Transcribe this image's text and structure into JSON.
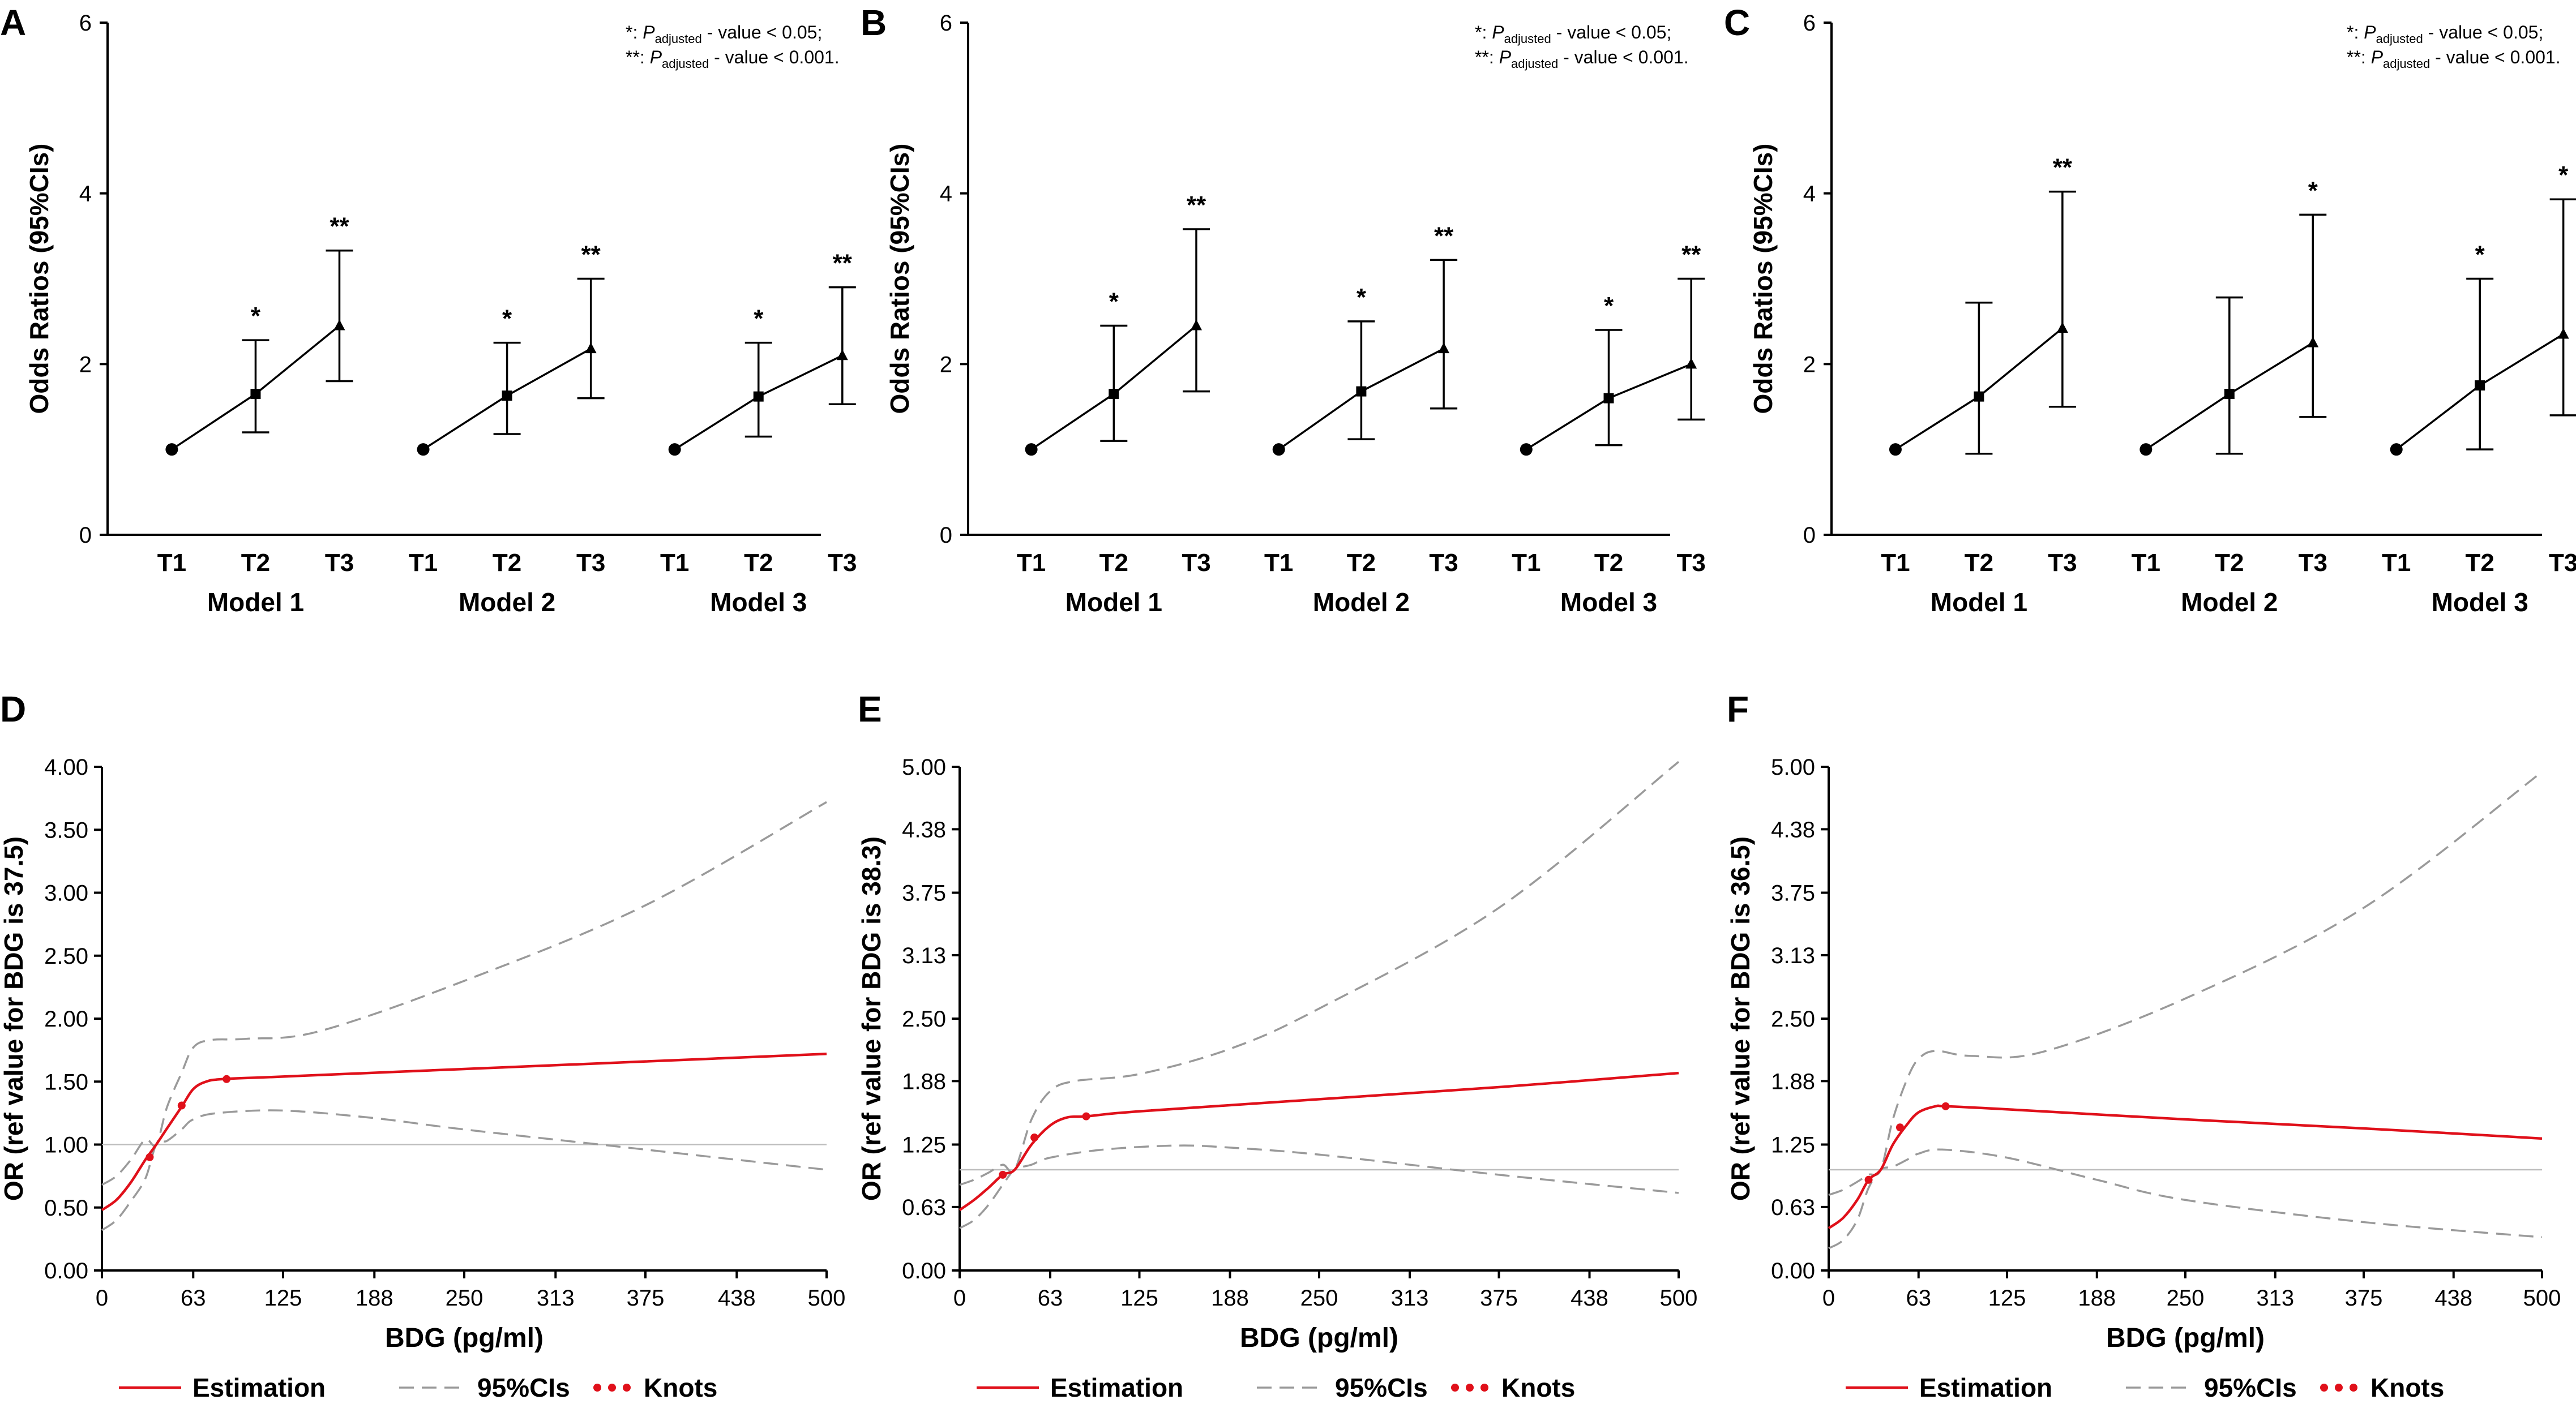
{
  "colors": {
    "estimation": "#e0101a",
    "ci": "#9a9a9a",
    "reference": "#bdbdbd",
    "axis": "#000000"
  },
  "panels_top": [
    {
      "label": "A",
      "ylabel": "Odds Ratios (95%CIs)",
      "ylim": [
        0,
        6
      ],
      "yticks": [
        "0",
        "2",
        "4",
        "6"
      ],
      "footnote1": "*:  P adjusted - value < 0.05;",
      "footnote2": "**: P adjusted - value < 0.001.",
      "models": [
        {
          "name": "Model 1",
          "points": [
            {
              "tertile": "T1",
              "or": 1.0,
              "lo": null,
              "hi": null,
              "sig": ""
            },
            {
              "tertile": "T2",
              "or": 1.65,
              "lo": 1.2,
              "hi": 2.28,
              "sig": "*"
            },
            {
              "tertile": "T3",
              "or": 2.45,
              "lo": 1.8,
              "hi": 3.33,
              "sig": "**"
            }
          ]
        },
        {
          "name": "Model 2",
          "points": [
            {
              "tertile": "T1",
              "or": 1.0,
              "lo": null,
              "hi": null,
              "sig": ""
            },
            {
              "tertile": "T2",
              "or": 1.63,
              "lo": 1.18,
              "hi": 2.25,
              "sig": "*"
            },
            {
              "tertile": "T3",
              "or": 2.18,
              "lo": 1.6,
              "hi": 3.0,
              "sig": "**"
            }
          ]
        },
        {
          "name": "Model 3",
          "points": [
            {
              "tertile": "T1",
              "or": 1.0,
              "lo": null,
              "hi": null,
              "sig": ""
            },
            {
              "tertile": "T2",
              "or": 1.62,
              "lo": 1.15,
              "hi": 2.25,
              "sig": "*"
            },
            {
              "tertile": "T3",
              "or": 2.1,
              "lo": 1.53,
              "hi": 2.9,
              "sig": "**"
            }
          ]
        }
      ]
    },
    {
      "label": "B",
      "ylabel": "Odds Ratios (95%CIs)",
      "ylim": [
        0,
        6
      ],
      "yticks": [
        "0",
        "2",
        "4",
        "6"
      ],
      "footnote1": "*:  P adjusted - value < 0.05;",
      "footnote2": "**: P adjusted - value < 0.001.",
      "models": [
        {
          "name": "Model 1",
          "points": [
            {
              "tertile": "T1",
              "or": 1.0,
              "lo": null,
              "hi": null,
              "sig": ""
            },
            {
              "tertile": "T2",
              "or": 1.65,
              "lo": 1.1,
              "hi": 2.45,
              "sig": "*"
            },
            {
              "tertile": "T3",
              "or": 2.45,
              "lo": 1.68,
              "hi": 3.58,
              "sig": "**"
            }
          ]
        },
        {
          "name": "Model 2",
          "points": [
            {
              "tertile": "T1",
              "or": 1.0,
              "lo": null,
              "hi": null,
              "sig": ""
            },
            {
              "tertile": "T2",
              "or": 1.68,
              "lo": 1.12,
              "hi": 2.5,
              "sig": "*"
            },
            {
              "tertile": "T3",
              "or": 2.18,
              "lo": 1.48,
              "hi": 3.22,
              "sig": "**"
            }
          ]
        },
        {
          "name": "Model 3",
          "points": [
            {
              "tertile": "T1",
              "or": 1.0,
              "lo": null,
              "hi": null,
              "sig": ""
            },
            {
              "tertile": "T2",
              "or": 1.6,
              "lo": 1.05,
              "hi": 2.4,
              "sig": "*"
            },
            {
              "tertile": "T3",
              "or": 2.0,
              "lo": 1.35,
              "hi": 3.0,
              "sig": "**"
            }
          ]
        }
      ]
    },
    {
      "label": "C",
      "ylabel": "Odds Ratios (95%CIs)",
      "ylim": [
        0,
        6
      ],
      "yticks": [
        "0",
        "2",
        "4",
        "6"
      ],
      "footnote1": "*:  P adjusted - value < 0.05;",
      "footnote2": "**: P adjusted - value < 0.001.",
      "models": [
        {
          "name": "Model 1",
          "points": [
            {
              "tertile": "T1",
              "or": 1.0,
              "lo": null,
              "hi": null,
              "sig": ""
            },
            {
              "tertile": "T2",
              "or": 1.62,
              "lo": 0.95,
              "hi": 2.72,
              "sig": ""
            },
            {
              "tertile": "T3",
              "or": 2.42,
              "lo": 1.5,
              "hi": 4.02,
              "sig": "**"
            }
          ]
        },
        {
          "name": "Model 2",
          "points": [
            {
              "tertile": "T1",
              "or": 1.0,
              "lo": null,
              "hi": null,
              "sig": ""
            },
            {
              "tertile": "T2",
              "or": 1.65,
              "lo": 0.95,
              "hi": 2.78,
              "sig": ""
            },
            {
              "tertile": "T3",
              "or": 2.25,
              "lo": 1.38,
              "hi": 3.75,
              "sig": "*"
            }
          ]
        },
        {
          "name": "Model 3",
          "points": [
            {
              "tertile": "T1",
              "or": 1.0,
              "lo": null,
              "hi": null,
              "sig": ""
            },
            {
              "tertile": "T2",
              "or": 1.75,
              "lo": 1.0,
              "hi": 3.0,
              "sig": "*"
            },
            {
              "tertile": "T3",
              "or": 2.35,
              "lo": 1.4,
              "hi": 3.93,
              "sig": "*"
            }
          ]
        }
      ]
    }
  ],
  "panels_bottom": [
    {
      "label": "D",
      "ylabel": "OR (ref value for BDG is 37.5)",
      "xlabel": "BDG (pg/ml)",
      "xticks": [
        "0",
        "63",
        "125",
        "188",
        "250",
        "313",
        "375",
        "438",
        "500"
      ],
      "yticks": [
        "0.00",
        "0.50",
        "1.00",
        "1.50",
        "2.00",
        "2.50",
        "3.00",
        "3.50",
        "4.00"
      ],
      "xlim": [
        0,
        500
      ],
      "ylim": [
        0,
        4
      ],
      "ref_or": 1.0,
      "estimation": [
        [
          0,
          0.48
        ],
        [
          10,
          0.56
        ],
        [
          20,
          0.7
        ],
        [
          30,
          0.88
        ],
        [
          37.5,
          1.0
        ],
        [
          45,
          1.13
        ],
        [
          55,
          1.3
        ],
        [
          63,
          1.44
        ],
        [
          72,
          1.5
        ],
        [
          84,
          1.52
        ],
        [
          125,
          1.54
        ],
        [
          250,
          1.6
        ],
        [
          375,
          1.66
        ],
        [
          500,
          1.72
        ]
      ],
      "ci_upper": [
        [
          0,
          0.68
        ],
        [
          10,
          0.75
        ],
        [
          20,
          0.88
        ],
        [
          30,
          1.04
        ],
        [
          37.5,
          1.0
        ],
        [
          45,
          1.3
        ],
        [
          55,
          1.57
        ],
        [
          63,
          1.77
        ],
        [
          75,
          1.83
        ],
        [
          100,
          1.84
        ],
        [
          150,
          1.9
        ],
        [
          250,
          2.3
        ],
        [
          375,
          2.9
        ],
        [
          500,
          3.72
        ]
      ],
      "ci_lower": [
        [
          0,
          0.32
        ],
        [
          10,
          0.4
        ],
        [
          20,
          0.55
        ],
        [
          30,
          0.73
        ],
        [
          37.5,
          1.0
        ],
        [
          45,
          1.03
        ],
        [
          55,
          1.12
        ],
        [
          63,
          1.2
        ],
        [
          80,
          1.25
        ],
        [
          125,
          1.27
        ],
        [
          188,
          1.21
        ],
        [
          250,
          1.12
        ],
        [
          375,
          0.96
        ],
        [
          500,
          0.8
        ]
      ],
      "knots": [
        [
          33,
          0.9
        ],
        [
          55,
          1.31
        ],
        [
          86,
          1.52
        ]
      ]
    },
    {
      "label": "E",
      "ylabel": "OR (ref value for BDG is 38.3)",
      "xlabel": "BDG (pg/ml)",
      "xticks": [
        "0",
        "63",
        "125",
        "188",
        "250",
        "313",
        "375",
        "438",
        "500"
      ],
      "yticks": [
        "0.00",
        "0.63",
        "1.25",
        "1.88",
        "2.50",
        "3.13",
        "3.75",
        "4.38",
        "5.00"
      ],
      "xlim": [
        0,
        500
      ],
      "ylim": [
        0,
        5
      ],
      "ref_or": 1.0,
      "estimation": [
        [
          0,
          0.6
        ],
        [
          10,
          0.7
        ],
        [
          20,
          0.82
        ],
        [
          30,
          0.95
        ],
        [
          38.3,
          1.0
        ],
        [
          50,
          1.25
        ],
        [
          63,
          1.44
        ],
        [
          75,
          1.52
        ],
        [
          88,
          1.53
        ],
        [
          125,
          1.58
        ],
        [
          250,
          1.7
        ],
        [
          375,
          1.82
        ],
        [
          500,
          1.96
        ]
      ],
      "ci_upper": [
        [
          0,
          0.85
        ],
        [
          10,
          0.9
        ],
        [
          20,
          0.97
        ],
        [
          30,
          1.05
        ],
        [
          38.3,
          1.0
        ],
        [
          50,
          1.5
        ],
        [
          63,
          1.78
        ],
        [
          80,
          1.88
        ],
        [
          125,
          1.95
        ],
        [
          188,
          2.2
        ],
        [
          250,
          2.6
        ],
        [
          375,
          3.6
        ],
        [
          500,
          5.05
        ]
      ],
      "ci_lower": [
        [
          0,
          0.42
        ],
        [
          10,
          0.5
        ],
        [
          20,
          0.65
        ],
        [
          30,
          0.85
        ],
        [
          38.3,
          1.0
        ],
        [
          50,
          1.05
        ],
        [
          63,
          1.12
        ],
        [
          100,
          1.2
        ],
        [
          150,
          1.24
        ],
        [
          188,
          1.22
        ],
        [
          250,
          1.15
        ],
        [
          375,
          0.95
        ],
        [
          500,
          0.77
        ]
      ],
      "knots": [
        [
          30,
          0.95
        ],
        [
          52,
          1.32
        ],
        [
          88,
          1.53
        ]
      ]
    },
    {
      "label": "F",
      "ylabel": "OR (ref value for BDG is 36.5)",
      "xlabel": "BDG (pg/ml)",
      "xticks": [
        "0",
        "63",
        "125",
        "188",
        "250",
        "313",
        "375",
        "438",
        "500"
      ],
      "yticks": [
        "0.00",
        "0.63",
        "1.25",
        "1.88",
        "2.50",
        "3.13",
        "3.75",
        "4.38",
        "5.00"
      ],
      "xlim": [
        0,
        500
      ],
      "ylim": [
        0,
        5
      ],
      "ref_or": 1.0,
      "estimation": [
        [
          0,
          0.42
        ],
        [
          10,
          0.52
        ],
        [
          20,
          0.7
        ],
        [
          28,
          0.9
        ],
        [
          36.5,
          1.0
        ],
        [
          45,
          1.25
        ],
        [
          55,
          1.45
        ],
        [
          63,
          1.57
        ],
        [
          75,
          1.63
        ],
        [
          82,
          1.63
        ],
        [
          125,
          1.6
        ],
        [
          250,
          1.5
        ],
        [
          375,
          1.41
        ],
        [
          500,
          1.31
        ]
      ],
      "ci_upper": [
        [
          0,
          0.75
        ],
        [
          10,
          0.8
        ],
        [
          20,
          0.88
        ],
        [
          28,
          0.95
        ],
        [
          36.5,
          1.0
        ],
        [
          45,
          1.5
        ],
        [
          55,
          1.9
        ],
        [
          63,
          2.1
        ],
        [
          75,
          2.18
        ],
        [
          100,
          2.13
        ],
        [
          150,
          2.17
        ],
        [
          250,
          2.7
        ],
        [
          375,
          3.6
        ],
        [
          500,
          4.95
        ]
      ],
      "ci_lower": [
        [
          0,
          0.22
        ],
        [
          10,
          0.3
        ],
        [
          20,
          0.5
        ],
        [
          28,
          0.82
        ],
        [
          36.5,
          1.0
        ],
        [
          45,
          1.03
        ],
        [
          55,
          1.1
        ],
        [
          63,
          1.16
        ],
        [
          80,
          1.2
        ],
        [
          125,
          1.12
        ],
        [
          188,
          0.9
        ],
        [
          250,
          0.7
        ],
        [
          375,
          0.48
        ],
        [
          500,
          0.33
        ]
      ],
      "knots": [
        [
          28,
          0.9
        ],
        [
          50,
          1.42
        ],
        [
          82,
          1.63
        ]
      ]
    }
  ],
  "legend": {
    "estimation": "Estimation",
    "ci": "95%CIs",
    "knots": "Knots"
  },
  "chart_data": [
    {
      "type": "line-errorbar",
      "panel": "A",
      "ylabel": "Odds Ratios (95%CIs)",
      "ylim": [
        0,
        6
      ],
      "categories": [
        "T1",
        "T2",
        "T3"
      ],
      "series": [
        {
          "name": "Model 1",
          "values": [
            1.0,
            1.65,
            2.45
          ],
          "ci_low": [
            null,
            1.2,
            1.8
          ],
          "ci_high": [
            null,
            2.28,
            3.33
          ]
        },
        {
          "name": "Model 2",
          "values": [
            1.0,
            1.63,
            2.18
          ],
          "ci_low": [
            null,
            1.18,
            1.6
          ],
          "ci_high": [
            null,
            2.25,
            3.0
          ]
        },
        {
          "name": "Model 3",
          "values": [
            1.0,
            1.62,
            2.1
          ],
          "ci_low": [
            null,
            1.15,
            1.53
          ],
          "ci_high": [
            null,
            2.25,
            2.9
          ]
        }
      ]
    },
    {
      "type": "line-errorbar",
      "panel": "B",
      "ylabel": "Odds Ratios (95%CIs)",
      "ylim": [
        0,
        6
      ],
      "categories": [
        "T1",
        "T2",
        "T3"
      ],
      "series": [
        {
          "name": "Model 1",
          "values": [
            1.0,
            1.65,
            2.45
          ],
          "ci_low": [
            null,
            1.1,
            1.68
          ],
          "ci_high": [
            null,
            2.45,
            3.58
          ]
        },
        {
          "name": "Model 2",
          "values": [
            1.0,
            1.68,
            2.18
          ],
          "ci_low": [
            null,
            1.12,
            1.48
          ],
          "ci_high": [
            null,
            2.5,
            3.22
          ]
        },
        {
          "name": "Model 3",
          "values": [
            1.0,
            1.6,
            2.0
          ],
          "ci_low": [
            null,
            1.05,
            1.35
          ],
          "ci_high": [
            null,
            2.4,
            3.0
          ]
        }
      ]
    },
    {
      "type": "line-errorbar",
      "panel": "C",
      "ylabel": "Odds Ratios (95%CIs)",
      "ylim": [
        0,
        6
      ],
      "categories": [
        "T1",
        "T2",
        "T3"
      ],
      "series": [
        {
          "name": "Model 1",
          "values": [
            1.0,
            1.62,
            2.42
          ],
          "ci_low": [
            null,
            0.95,
            1.5
          ],
          "ci_high": [
            null,
            2.72,
            4.02
          ]
        },
        {
          "name": "Model 2",
          "values": [
            1.0,
            1.65,
            2.25
          ],
          "ci_low": [
            null,
            0.95,
            1.38
          ],
          "ci_high": [
            null,
            2.78,
            3.75
          ]
        },
        {
          "name": "Model 3",
          "values": [
            1.0,
            1.75,
            2.35
          ],
          "ci_low": [
            null,
            1.0,
            1.4
          ],
          "ci_high": [
            null,
            3.0,
            3.93
          ]
        }
      ]
    },
    {
      "type": "line",
      "panel": "D",
      "xlabel": "BDG (pg/ml)",
      "ylabel": "OR (ref value for BDG is 37.5)",
      "xlim": [
        0,
        500
      ],
      "ylim": [
        0,
        4
      ],
      "note": "restricted cubic spline; series Estimation, 95%CIs upper/lower, Knots"
    },
    {
      "type": "line",
      "panel": "E",
      "xlabel": "BDG (pg/ml)",
      "ylabel": "OR (ref value for BDG is 38.3)",
      "xlim": [
        0,
        500
      ],
      "ylim": [
        0,
        5
      ],
      "note": "restricted cubic spline; series Estimation, 95%CIs upper/lower, Knots"
    },
    {
      "type": "line",
      "panel": "F",
      "xlabel": "BDG (pg/ml)",
      "ylabel": "OR (ref value for BDG is 36.5)",
      "xlim": [
        0,
        500
      ],
      "ylim": [
        0,
        5
      ],
      "note": "restricted cubic spline; series Estimation, 95%CIs upper/lower, Knots"
    }
  ]
}
